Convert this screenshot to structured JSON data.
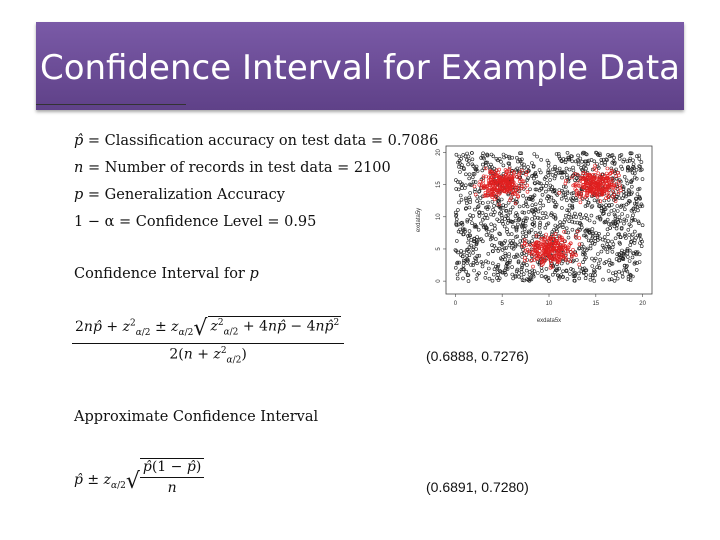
{
  "slide": {
    "title": "Confidence Interval for Example Data",
    "definitions": [
      {
        "symbol": "p̂",
        "text": " = Classification accuracy on test data = 0.7086"
      },
      {
        "symbol": "n",
        "text": " = Number of records in test data = 2100"
      },
      {
        "symbol": "p",
        "text": " = Generalization Accuracy"
      },
      {
        "symbol": "1 − α",
        "text": " = Confidence Level = 0.95"
      }
    ],
    "ci_heading": "Confidence Interval for",
    "ci_heading_var": "p",
    "exact_result": "(0.6888, 0.7276)",
    "approx_heading": "Approximate Confidence Interval",
    "approx_result": "(0.6891, 0.7280)"
  },
  "plot": {
    "xlabel": "exdata5x",
    "ylabel": "exdata5y",
    "x_ticks": [
      "0",
      "5",
      "10",
      "15",
      "20"
    ],
    "y_ticks": [
      "0",
      "5",
      "10",
      "15",
      "20"
    ],
    "series_colors": {
      "background": "#222222",
      "class": "#e02020"
    }
  }
}
